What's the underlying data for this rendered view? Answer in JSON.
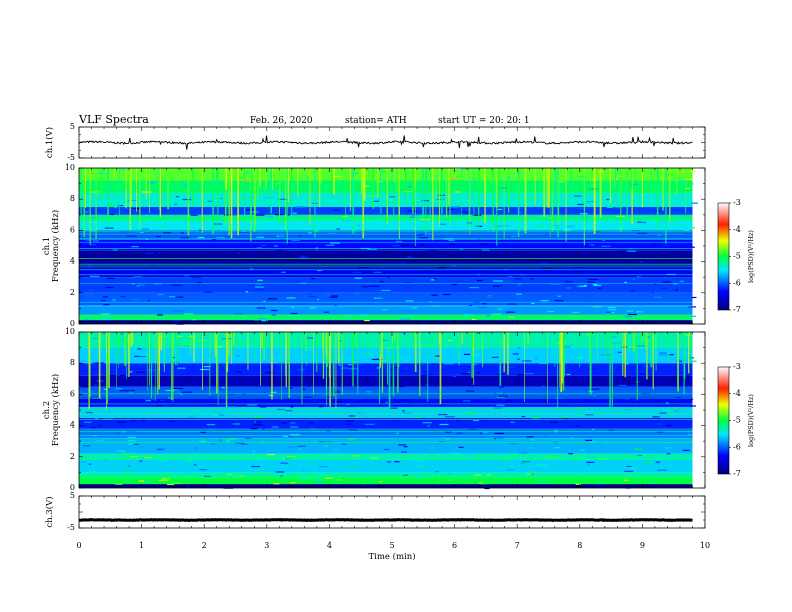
{
  "header": {
    "title": "VLF  Spectra",
    "date": "Feb. 26, 2020",
    "station": "station= ATH",
    "start": "start  UT  =   20: 20: 1"
  },
  "chart_data": [
    {
      "type": "line",
      "name": "ch1-waveform",
      "ylabel": "ch.1(V)",
      "ylim": [
        -5,
        5
      ],
      "y_ticks": [
        "5",
        "-5"
      ],
      "x_range_min": [
        0,
        9.8
      ],
      "typical_value_v": 0.0,
      "amplitude_v": 0.6,
      "spikes": true
    },
    {
      "type": "heatmap",
      "name": "ch1-spectrogram",
      "ylabel_line1": "ch.1",
      "ylabel_line2": "Frequency  (kHz)",
      "ylim_khz": [
        0,
        10
      ],
      "y_ticks": [
        "0",
        "2",
        "4",
        "6",
        "8",
        "10"
      ],
      "colorbar": {
        "label": "log(PSD)(V²/Hz)",
        "ticks": [
          "-3",
          "-4",
          "-5",
          "-6",
          "-7"
        ],
        "range": [
          -7,
          -3
        ]
      },
      "bands": [
        {
          "f": [
            0,
            0.25
          ],
          "level": -7.0
        },
        {
          "f": [
            0.25,
            0.6
          ],
          "level": -5.1
        },
        {
          "f": [
            0.6,
            1.2
          ],
          "level": -5.8
        },
        {
          "f": [
            1.2,
            2.0
          ],
          "level": -6.0
        },
        {
          "f": [
            2.0,
            3.0
          ],
          "level": -6.1
        },
        {
          "f": [
            3.0,
            3.6
          ],
          "level": -6.4
        },
        {
          "f": [
            3.6,
            4.7
          ],
          "level": -6.85
        },
        {
          "f": [
            4.7,
            5.4
          ],
          "level": -6.3
        },
        {
          "f": [
            5.4,
            6.0
          ],
          "level": -6.0
        },
        {
          "f": [
            6.0,
            6.6
          ],
          "level": -5.5
        },
        {
          "f": [
            6.6,
            7.0
          ],
          "level": -5.2
        },
        {
          "f": [
            7.0,
            7.5
          ],
          "level": -6.1
        },
        {
          "f": [
            7.5,
            8.4
          ],
          "level": -5.4
        },
        {
          "f": [
            8.4,
            9.2
          ],
          "level": -5.1
        },
        {
          "f": [
            9.2,
            10.0
          ],
          "level": -4.8
        }
      ]
    },
    {
      "type": "heatmap",
      "name": "ch2-spectrogram",
      "ylabel_line1": "ch.2",
      "ylabel_line2": "Frequency  (kHz)",
      "ylim_khz": [
        0,
        10
      ],
      "y_ticks": [
        "0",
        "2",
        "4",
        "6",
        "8",
        "10"
      ],
      "colorbar": {
        "label": "log(PSD)(V²/Hz)",
        "ticks": [
          "-3",
          "-4",
          "-5",
          "-6",
          "-7"
        ],
        "range": [
          -7,
          -3
        ]
      },
      "bands": [
        {
          "f": [
            0,
            0.25
          ],
          "level": -7.0
        },
        {
          "f": [
            0.25,
            0.7
          ],
          "level": -5.0
        },
        {
          "f": [
            0.7,
            1.0
          ],
          "level": -5.3
        },
        {
          "f": [
            1.0,
            1.8
          ],
          "level": -5.6
        },
        {
          "f": [
            1.8,
            2.2
          ],
          "level": -5.3
        },
        {
          "f": [
            2.2,
            3.2
          ],
          "level": -5.7
        },
        {
          "f": [
            3.2,
            3.8
          ],
          "level": -5.9
        },
        {
          "f": [
            3.8,
            4.5
          ],
          "level": -6.2
        },
        {
          "f": [
            4.5,
            5.2
          ],
          "level": -5.6
        },
        {
          "f": [
            5.2,
            5.8
          ],
          "level": -6.3
        },
        {
          "f": [
            5.8,
            6.5
          ],
          "level": -6.0
        },
        {
          "f": [
            6.5,
            7.2
          ],
          "level": -6.7
        },
        {
          "f": [
            7.2,
            8.0
          ],
          "level": -6.2
        },
        {
          "f": [
            8.0,
            9.0
          ],
          "level": -5.6
        },
        {
          "f": [
            9.0,
            10.0
          ],
          "level": -5.3
        }
      ]
    },
    {
      "type": "line",
      "name": "ch3-waveform",
      "ylabel": "ch.3(V)",
      "ylim": [
        -5,
        5
      ],
      "y_ticks": [
        "5",
        "-5"
      ],
      "x_range_min": [
        0,
        9.8
      ],
      "typical_value_v": -2.5,
      "amplitude_v": 0.15,
      "spikes": false
    }
  ],
  "x_axis": {
    "label": "Time  (min)",
    "xlim": [
      0,
      10
    ],
    "ticks": [
      "0",
      "1",
      "2",
      "3",
      "4",
      "5",
      "6",
      "7",
      "8",
      "9",
      "10"
    ]
  }
}
